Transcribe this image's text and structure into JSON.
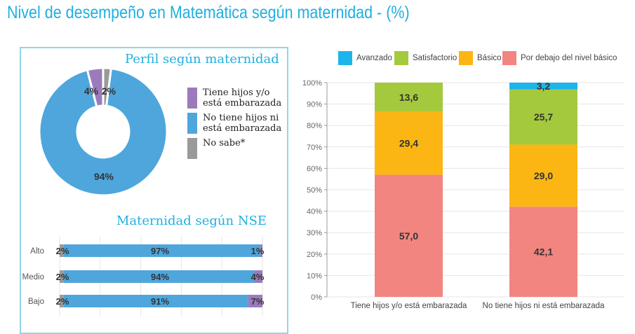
{
  "title": "Nivel de desempeño en Matemática según maternidad - (%)",
  "chart_data": [
    {
      "type": "pie",
      "title": "Perfil según maternidad",
      "donut": true,
      "slices": [
        {
          "name": "No sabe*",
          "value": 2,
          "label": "2%",
          "color": "#9a9a9a"
        },
        {
          "name": "No tiene hijos ni está embarazada",
          "value": 94,
          "label": "94%",
          "color": "#4ea6dc"
        },
        {
          "name": "Tiene hijos y/o está embarazada",
          "value": 4,
          "label": "4%",
          "color": "#9c7bbc"
        }
      ],
      "legend": [
        {
          "label": "Tiene hijos y/o está embarazada",
          "color": "#9c7bbc"
        },
        {
          "label": "No tiene hijos ni está embarazada",
          "color": "#4ea6dc"
        },
        {
          "label": "No sabe*",
          "color": "#9a9a9a"
        }
      ],
      "legend_placement": "right"
    },
    {
      "type": "bar",
      "orientation": "horizontal",
      "stacked": true,
      "title": "Maternidad según NSE",
      "categories": [
        "Alto",
        "Medio",
        "Bajo"
      ],
      "series": [
        {
          "values": [
            2,
            2,
            2
          ],
          "labels": [
            "2%",
            "2%",
            "2%"
          ],
          "color": "#9a9a9a"
        },
        {
          "values": [
            97,
            94,
            91
          ],
          "labels": [
            "97%",
            "94%",
            "91%"
          ],
          "color": "#4ea6dc"
        },
        {
          "values": [
            1,
            4,
            7
          ],
          "labels": [
            "1%",
            "4%",
            "7%"
          ],
          "color": "#9c7bbc"
        }
      ],
      "xlim": [
        0,
        100
      ],
      "grid": true
    },
    {
      "type": "bar",
      "stacked": true,
      "categories": [
        "Tiene hijos y/o está embarazada",
        "No tiene hijos ni está embarazada"
      ],
      "series": [
        {
          "name": "Por debajo del nivel básico",
          "values": [
            57.0,
            42.1
          ],
          "labels": [
            "57,0",
            "42,1"
          ],
          "color": "#f2857f"
        },
        {
          "name": "Básico",
          "values": [
            29.4,
            29.0
          ],
          "labels": [
            "29,4",
            "29,0"
          ],
          "color": "#fbb614"
        },
        {
          "name": "Satisfactorio",
          "values": [
            13.6,
            25.7
          ],
          "labels": [
            "13,6",
            "25,7"
          ],
          "color": "#a5c93c"
        },
        {
          "name": "Avanzado",
          "values": [
            0,
            3.2
          ],
          "labels": [
            "",
            "3,2"
          ],
          "color": "#1cb5ea"
        }
      ],
      "legend_order": [
        "Avanzado",
        "Satisfactorio",
        "Básico",
        "Por debajo del nivel básico"
      ],
      "yticks": [
        "0%",
        "10%",
        "20%",
        "30%",
        "40%",
        "50%",
        "60%",
        "70%",
        "80%",
        "90%",
        "100%"
      ],
      "ylim": [
        0,
        100
      ],
      "grid": true,
      "legend_placement": "top"
    }
  ]
}
